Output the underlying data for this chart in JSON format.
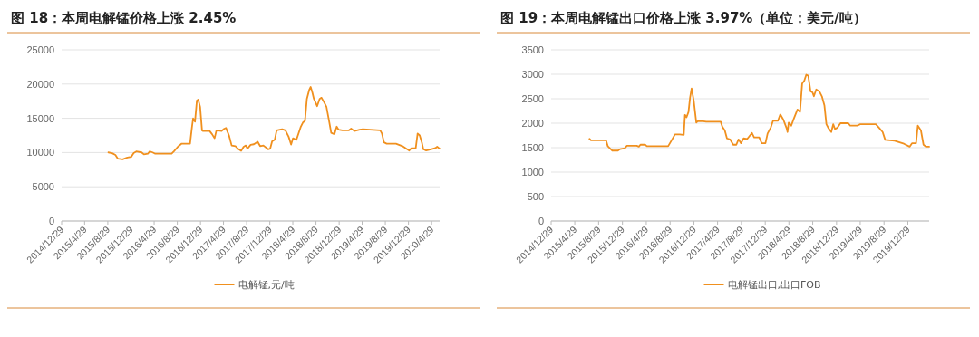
{
  "chart_data": [
    {
      "type": "line",
      "title": "图 18：本周电解锰价格上涨 2.45%",
      "legend": "bottom",
      "grid": "y",
      "marker": "none",
      "line_style": "solid",
      "ylim": [
        0,
        25000
      ],
      "yticks": [
        0,
        5000,
        10000,
        15000,
        20000,
        25000
      ],
      "xlim": [
        "2014-12-29",
        "2020-06-10"
      ],
      "xticks": [
        {
          "value": "2014-12-29",
          "label": "2014/12/29"
        },
        {
          "value": "2015-04-29",
          "label": "2015/4/29"
        },
        {
          "value": "2015-08-29",
          "label": "2015/8/29"
        },
        {
          "value": "2015-12-29",
          "label": "2015/12/29"
        },
        {
          "value": "2016-04-29",
          "label": "2016/4/29"
        },
        {
          "value": "2016-08-29",
          "label": "2016/8/29"
        },
        {
          "value": "2016-12-29",
          "label": "2016/12/29"
        },
        {
          "value": "2017-04-29",
          "label": "2017/4/29"
        },
        {
          "value": "2017-08-29",
          "label": "2017/8/29"
        },
        {
          "value": "2017-12-29",
          "label": "2017/12/29"
        },
        {
          "value": "2018-04-29",
          "label": "2018/4/29"
        },
        {
          "value": "2018-08-29",
          "label": "2018/8/29"
        },
        {
          "value": "2018-12-29",
          "label": "2018/12/29"
        },
        {
          "value": "2019-04-29",
          "label": "2019/4/29"
        },
        {
          "value": "2019-08-29",
          "label": "2019/8/29"
        },
        {
          "value": "2019-12-29",
          "label": "2019/12/29"
        },
        {
          "value": "2020-04-29",
          "label": "2020/4/29"
        }
      ],
      "x": [
        "2015-09-01",
        "2015-09-21",
        "2015-10-08",
        "2015-10-21",
        "2015-11-15",
        "2015-12-10",
        "2015-12-30",
        "2016-01-12",
        "2016-01-26",
        "2016-02-23",
        "2016-03-06",
        "2016-03-27",
        "2016-04-05",
        "2016-04-21",
        "2016-05-05",
        "2016-07-30",
        "2016-08-12",
        "2016-09-01",
        "2016-09-21",
        "2016-11-04",
        "2016-11-14",
        "2016-11-20",
        "2016-11-30",
        "2016-12-10",
        "2016-12-17",
        "2016-12-27",
        "2017-01-06",
        "2017-01-12",
        "2017-02-15",
        "2017-02-28",
        "2017-03-13",
        "2017-03-23",
        "2017-04-19",
        "2017-05-02",
        "2017-05-12",
        "2017-05-29",
        "2017-06-11",
        "2017-07-01",
        "2017-07-18",
        "2017-07-31",
        "2017-08-13",
        "2017-08-25",
        "2017-09-02",
        "2017-09-19",
        "2017-10-06",
        "2017-10-26",
        "2017-11-08",
        "2017-11-25",
        "2017-12-20",
        "2017-12-31",
        "2018-01-10",
        "2018-01-24",
        "2018-02-03",
        "2018-03-04",
        "2018-03-21",
        "2018-04-07",
        "2018-04-20",
        "2018-04-30",
        "2018-05-18",
        "2018-06-09",
        "2018-06-21",
        "2018-07-02",
        "2018-07-12",
        "2018-07-24",
        "2018-08-01",
        "2018-08-10",
        "2018-08-18",
        "2018-08-26",
        "2018-09-04",
        "2018-09-17",
        "2018-09-27",
        "2018-10-10",
        "2018-10-23",
        "2018-11-06",
        "2018-11-17",
        "2018-12-04",
        "2018-12-16",
        "2018-12-26",
        "2019-01-15",
        "2019-02-17",
        "2019-03-02",
        "2019-03-19",
        "2019-04-16",
        "2019-05-03",
        "2019-08-02",
        "2019-08-11",
        "2019-08-22",
        "2019-09-05",
        "2019-10-24",
        "2019-11-27",
        "2019-12-22",
        "2020-01-02",
        "2020-01-12",
        "2020-02-05",
        "2020-02-15",
        "2020-02-26",
        "2020-03-09",
        "2020-03-16",
        "2020-03-31",
        "2020-04-25",
        "2020-05-19",
        "2020-05-28",
        "2020-06-10"
      ],
      "series": [
        {
          "name": "电解锰,元/吨",
          "color": "#f0901e",
          "values": [
            10020,
            9900,
            9650,
            9100,
            9010,
            9280,
            9370,
            9930,
            10160,
            10020,
            9740,
            9830,
            10160,
            10020,
            9830,
            9830,
            10200,
            10850,
            11300,
            11300,
            13700,
            14980,
            14500,
            17600,
            17740,
            16680,
            13240,
            13140,
            13140,
            12680,
            12090,
            13240,
            13140,
            13460,
            13600,
            12410,
            11030,
            10940,
            10480,
            10250,
            10850,
            11030,
            10570,
            11120,
            11210,
            11580,
            10940,
            11030,
            10480,
            10570,
            11630,
            11860,
            13240,
            13420,
            13240,
            12320,
            11170,
            12090,
            11860,
            13700,
            14380,
            14610,
            17830,
            19120,
            19580,
            18750,
            17830,
            17370,
            16770,
            17830,
            18010,
            17370,
            16680,
            14610,
            12870,
            12680,
            13790,
            13330,
            13240,
            13240,
            13510,
            13140,
            13330,
            13420,
            13240,
            12780,
            11490,
            11300,
            11300,
            10940,
            10480,
            10290,
            10620,
            10620,
            12780,
            12500,
            11400,
            10480,
            10290,
            10480,
            10660,
            10850,
            10570
          ]
        }
      ]
    },
    {
      "type": "line",
      "title": "图 19：本周电解锰出口价格上涨 3.97%（单位：美元/吨）",
      "legend": "bottom",
      "grid": "y",
      "marker": "none",
      "line_style": "solid",
      "ylim": [
        0,
        3500
      ],
      "yticks": [
        0,
        500,
        1000,
        1500,
        2000,
        2500,
        3000,
        3500
      ],
      "xlim": [
        "2014-12-29",
        "2020-04-16"
      ],
      "xticks": [
        {
          "value": "2014-12-29",
          "label": "2014/12/29"
        },
        {
          "value": "2015-04-29",
          "label": "2015/4/29"
        },
        {
          "value": "2015-08-29",
          "label": "2015/8/29"
        },
        {
          "value": "2015-12-29",
          "label": "2015/12/29"
        },
        {
          "value": "2016-04-29",
          "label": "2016/4/29"
        },
        {
          "value": "2016-08-29",
          "label": "2016/8/29"
        },
        {
          "value": "2016-12-29",
          "label": "2016/12/29"
        },
        {
          "value": "2017-04-29",
          "label": "2017/4/29"
        },
        {
          "value": "2017-08-29",
          "label": "2017/8/29"
        },
        {
          "value": "2017-12-29",
          "label": "2017/12/29"
        },
        {
          "value": "2018-04-29",
          "label": "2018/4/29"
        },
        {
          "value": "2018-08-29",
          "label": "2018/8/29"
        },
        {
          "value": "2018-12-29",
          "label": "2018/12/29"
        },
        {
          "value": "2019-04-29",
          "label": "2019/4/29"
        },
        {
          "value": "2019-08-29",
          "label": "2019/8/29"
        },
        {
          "value": "2019-12-29",
          "label": "2019/12/29"
        }
      ],
      "x": [
        "2015-07-13",
        "2015-07-21",
        "2015-10-06",
        "2015-10-15",
        "2015-10-30",
        "2015-11-07",
        "2015-12-06",
        "2015-12-17",
        "2016-01-10",
        "2016-01-21",
        "2016-03-11",
        "2016-03-22",
        "2016-03-30",
        "2016-04-23",
        "2016-05-02",
        "2016-08-19",
        "2016-09-07",
        "2016-09-23",
        "2016-10-17",
        "2016-11-07",
        "2016-11-13",
        "2016-11-21",
        "2016-12-01",
        "2016-12-09",
        "2016-12-17",
        "2016-12-28",
        "2017-01-10",
        "2017-01-17",
        "2017-02-14",
        "2017-03-02",
        "2017-05-15",
        "2017-05-23",
        "2017-06-05",
        "2017-06-16",
        "2017-07-02",
        "2017-07-18",
        "2017-08-03",
        "2017-08-14",
        "2017-08-27",
        "2017-09-09",
        "2017-09-28",
        "2017-10-22",
        "2017-11-02",
        "2017-11-28",
        "2017-12-11",
        "2017-12-30",
        "2018-01-10",
        "2018-01-26",
        "2018-02-07",
        "2018-03-04",
        "2018-03-16",
        "2018-04-01",
        "2018-04-17",
        "2018-04-22",
        "2018-04-28",
        "2018-05-11",
        "2018-05-24",
        "2018-06-12",
        "2018-06-25",
        "2018-07-06",
        "2018-07-17",
        "2018-07-27",
        "2018-08-06",
        "2018-08-18",
        "2018-08-28",
        "2018-09-04",
        "2018-09-16",
        "2018-10-02",
        "2018-10-15",
        "2018-10-28",
        "2018-11-07",
        "2018-11-16",
        "2018-12-02",
        "2018-12-12",
        "2018-12-21",
        "2019-01-03",
        "2019-01-18",
        "2019-02-27",
        "2019-03-09",
        "2019-04-13",
        "2019-04-29",
        "2019-07-18",
        "2019-08-03",
        "2019-08-22",
        "2019-09-04",
        "2019-10-22",
        "2019-12-09",
        "2020-01-07",
        "2020-01-19",
        "2020-02-09",
        "2020-02-18",
        "2020-03-05",
        "2020-03-18",
        "2020-03-31",
        "2020-04-16"
      ],
      "series": [
        {
          "name": "电解锰出口,出口FOB",
          "color": "#f0901e",
          "values": [
            1680,
            1650,
            1650,
            1530,
            1470,
            1440,
            1440,
            1470,
            1490,
            1540,
            1540,
            1520,
            1560,
            1560,
            1530,
            1530,
            1660,
            1770,
            1770,
            1760,
            2170,
            2120,
            2230,
            2520,
            2710,
            2460,
            2010,
            2040,
            2040,
            2030,
            2030,
            1930,
            1850,
            1690,
            1670,
            1560,
            1560,
            1670,
            1590,
            1690,
            1680,
            1800,
            1710,
            1710,
            1590,
            1590,
            1790,
            1910,
            2050,
            2050,
            2180,
            2070,
            1900,
            1820,
            2010,
            1950,
            2090,
            2280,
            2230,
            2810,
            2870,
            2990,
            2970,
            2650,
            2630,
            2550,
            2690,
            2650,
            2550,
            2360,
            1980,
            1910,
            1820,
            1980,
            1880,
            1910,
            2000,
            2000,
            1950,
            1950,
            1980,
            1980,
            1910,
            1820,
            1660,
            1640,
            1580,
            1520,
            1590,
            1590,
            1950,
            1850,
            1560,
            1520,
            1520
          ]
        }
      ]
    }
  ]
}
